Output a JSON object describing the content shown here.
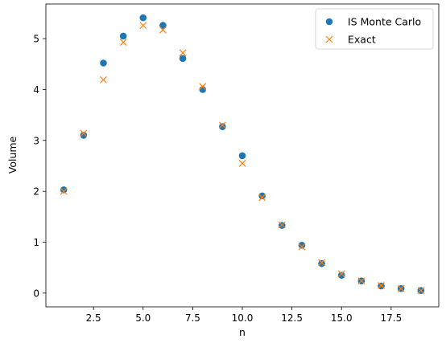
{
  "chart_data": {
    "type": "scatter",
    "title": "",
    "xlabel": "n",
    "ylabel": "Volume",
    "xlim": [
      0.1,
      19.9
    ],
    "ylim": [
      -0.27,
      5.68
    ],
    "xticks": [
      2.5,
      5.0,
      7.5,
      10.0,
      12.5,
      15.0,
      17.5
    ],
    "xtick_labels": [
      "2.5",
      "5.0",
      "7.5",
      "10.0",
      "12.5",
      "15.0",
      "17.5"
    ],
    "yticks": [
      0,
      1,
      2,
      3,
      4,
      5
    ],
    "ytick_labels": [
      "0",
      "1",
      "2",
      "3",
      "4",
      "5"
    ],
    "grid": false,
    "legend_position": "top-right",
    "series": [
      {
        "name": "IS Monte Carlo",
        "marker": "circle",
        "color": "#1f77b4",
        "x": [
          1,
          2,
          3,
          4,
          5,
          6,
          7,
          8,
          9,
          10,
          11,
          12,
          13,
          14,
          15,
          16,
          17,
          18,
          19
        ],
        "y": [
          2.03,
          3.1,
          4.52,
          5.05,
          5.41,
          5.26,
          4.61,
          4.0,
          3.27,
          2.7,
          1.91,
          1.33,
          0.94,
          0.58,
          0.35,
          0.24,
          0.14,
          0.09,
          0.05
        ]
      },
      {
        "name": "Exact",
        "marker": "x",
        "color": "#ff7f0e",
        "x": [
          1,
          2,
          3,
          4,
          5,
          6,
          7,
          8,
          9,
          10,
          11,
          12,
          13,
          14,
          15,
          16,
          17,
          18,
          19
        ],
        "y": [
          2.0,
          3.14,
          4.19,
          4.93,
          5.26,
          5.17,
          4.72,
          4.06,
          3.3,
          2.55,
          1.88,
          1.34,
          0.91,
          0.6,
          0.38,
          0.24,
          0.15,
          0.09,
          0.05
        ]
      }
    ]
  }
}
